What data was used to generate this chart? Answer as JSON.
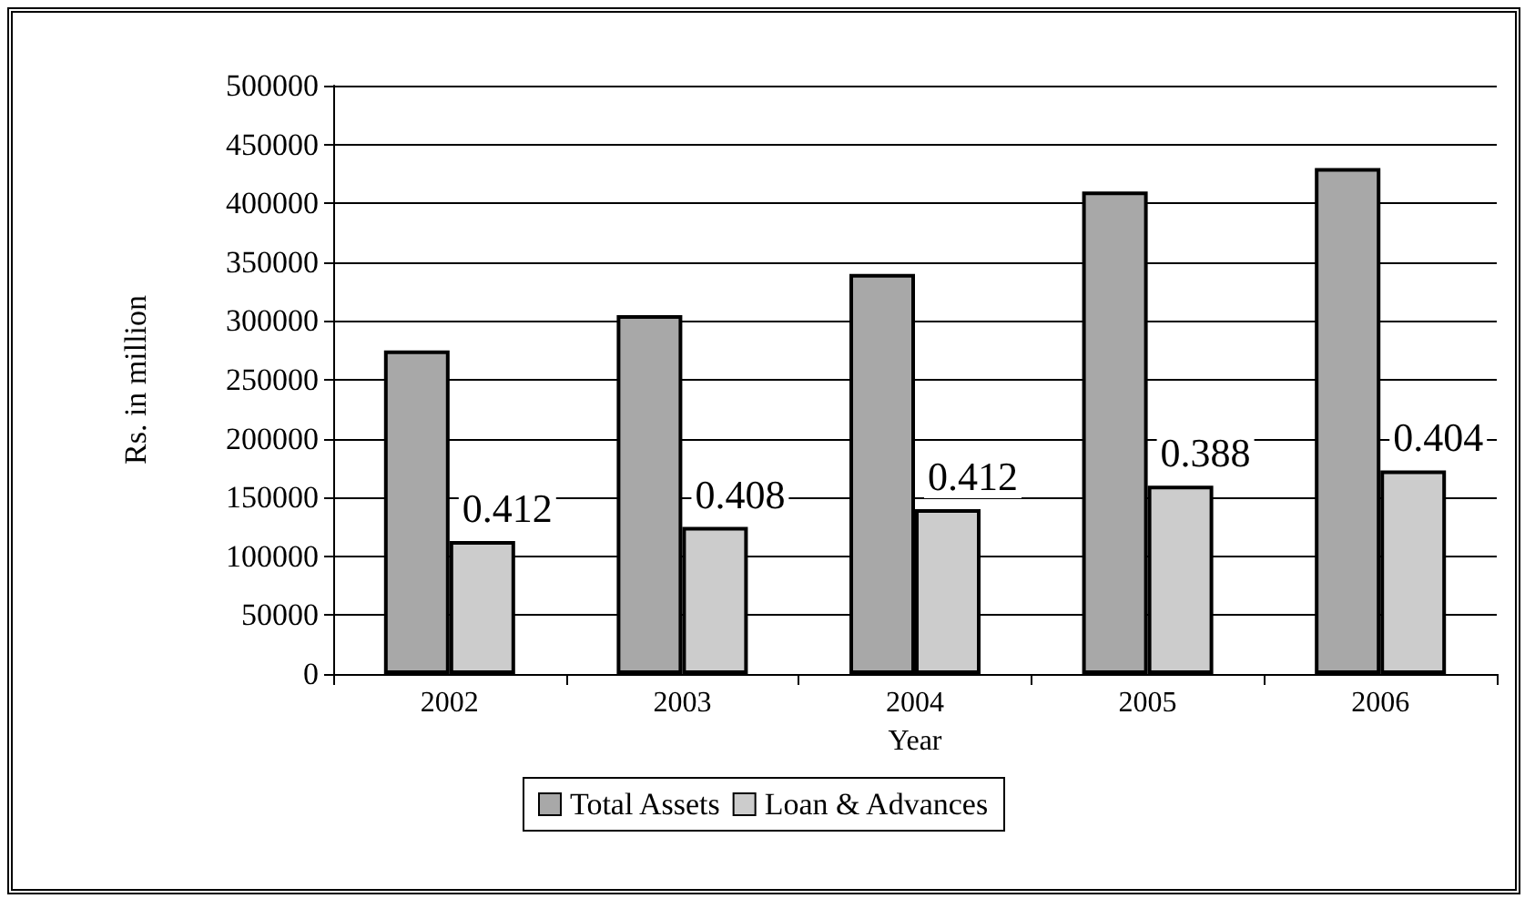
{
  "chart_data": {
    "type": "bar",
    "xlabel": "Year",
    "ylabel": "Rs. in million",
    "categories": [
      "2002",
      "2003",
      "2004",
      "2005",
      "2006"
    ],
    "series": [
      {
        "name": "Total Assets",
        "color": "#a8a8a8",
        "values": [
          275000,
          305000,
          340000,
          410000,
          430000
        ]
      },
      {
        "name": "Loan & Advances",
        "color": "#cccccc",
        "values": [
          113000,
          125000,
          140000,
          160000,
          173000
        ]
      }
    ],
    "ylim": [
      0,
      500000
    ],
    "yticks": [
      0,
      50000,
      100000,
      150000,
      200000,
      250000,
      300000,
      350000,
      400000,
      450000,
      500000
    ],
    "grid": "y",
    "legend": "bottom",
    "annotations": [
      {
        "text": "0.412",
        "x": "2002",
        "y": 113000
      },
      {
        "text": "0.408",
        "x": "2003",
        "y": 125000
      },
      {
        "text": "0.412",
        "x": "2004",
        "y": 140000
      },
      {
        "text": "0.388",
        "x": "2005",
        "y": 160000
      },
      {
        "text": "0.404",
        "x": "2006",
        "y": 173000
      }
    ]
  }
}
